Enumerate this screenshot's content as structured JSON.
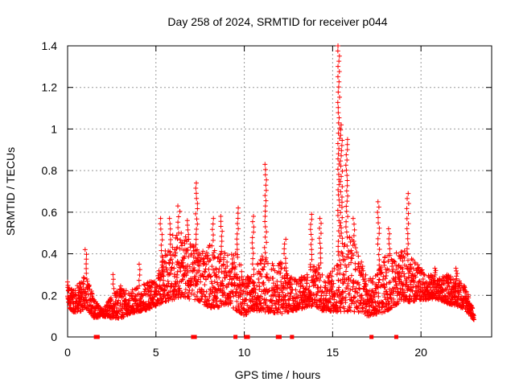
{
  "chart_data": {
    "type": "scatter",
    "title": "Day 258 of 2024, SRMTID for receiver p044",
    "xlabel": "GPS time / hours",
    "ylabel": "SRMTID / TECUs",
    "xlim": [
      0,
      24
    ],
    "ylim": [
      0,
      1.4
    ],
    "x_ticks": [
      0,
      5,
      10,
      15,
      20
    ],
    "x_tick_labels": [
      "0",
      "5",
      "10",
      "15",
      "20"
    ],
    "y_ticks": [
      0,
      0.2,
      0.4,
      0.6,
      0.8,
      1,
      1.2,
      1.4
    ],
    "y_tick_labels": [
      "0",
      "0.2",
      "0.4",
      "0.6",
      "0.8",
      "1",
      "1.2",
      "1.4"
    ],
    "grid": true,
    "marker": "+",
    "color": "#ff0000",
    "envelope": {
      "x": [
        0,
        0.3,
        0.7,
        1.0,
        1.5,
        2.0,
        2.5,
        3.0,
        3.5,
        4.0,
        4.5,
        5.0,
        5.5,
        6.0,
        6.5,
        7.0,
        7.5,
        8.0,
        8.5,
        9.0,
        9.5,
        10.0,
        10.5,
        11.0,
        11.5,
        12.0,
        12.5,
        13.0,
        13.5,
        14.0,
        14.5,
        15.0,
        15.5,
        16.0,
        16.5,
        17.0,
        17.5,
        18.0,
        18.5,
        19.0,
        19.5,
        20.0,
        20.5,
        21.0,
        21.5,
        22.0,
        22.5,
        23.0
      ],
      "lo": [
        0.15,
        0.12,
        0.12,
        0.14,
        0.09,
        0.1,
        0.09,
        0.09,
        0.11,
        0.12,
        0.13,
        0.15,
        0.17,
        0.18,
        0.19,
        0.18,
        0.17,
        0.14,
        0.14,
        0.16,
        0.13,
        0.1,
        0.13,
        0.12,
        0.12,
        0.11,
        0.12,
        0.13,
        0.14,
        0.15,
        0.12,
        0.12,
        0.12,
        0.12,
        0.12,
        0.1,
        0.11,
        0.12,
        0.15,
        0.16,
        0.17,
        0.18,
        0.18,
        0.18,
        0.16,
        0.15,
        0.13,
        0.08
      ],
      "hi": [
        0.27,
        0.23,
        0.26,
        0.32,
        0.18,
        0.13,
        0.2,
        0.25,
        0.22,
        0.24,
        0.27,
        0.28,
        0.42,
        0.5,
        0.5,
        0.45,
        0.4,
        0.45,
        0.42,
        0.4,
        0.42,
        0.3,
        0.3,
        0.4,
        0.35,
        0.38,
        0.3,
        0.28,
        0.3,
        0.38,
        0.3,
        0.32,
        0.45,
        0.5,
        0.4,
        0.28,
        0.3,
        0.4,
        0.4,
        0.42,
        0.38,
        0.33,
        0.3,
        0.28,
        0.3,
        0.28,
        0.25,
        0.12
      ]
    },
    "spikes": [
      {
        "x": 1.05,
        "y": 0.42
      },
      {
        "x": 2.6,
        "y": 0.3
      },
      {
        "x": 4.1,
        "y": 0.35
      },
      {
        "x": 5.3,
        "y": 0.57
      },
      {
        "x": 5.8,
        "y": 0.57
      },
      {
        "x": 6.3,
        "y": 0.63
      },
      {
        "x": 6.8,
        "y": 0.56
      },
      {
        "x": 7.3,
        "y": 0.74
      },
      {
        "x": 8.2,
        "y": 0.57
      },
      {
        "x": 8.7,
        "y": 0.58
      },
      {
        "x": 9.6,
        "y": 0.62
      },
      {
        "x": 10.5,
        "y": 0.58
      },
      {
        "x": 11.2,
        "y": 0.83
      },
      {
        "x": 12.3,
        "y": 0.47
      },
      {
        "x": 13.8,
        "y": 0.59
      },
      {
        "x": 14.3,
        "y": 0.57
      },
      {
        "x": 15.35,
        "y": 1.4
      },
      {
        "x": 15.5,
        "y": 1.02
      },
      {
        "x": 15.8,
        "y": 0.95
      },
      {
        "x": 16.2,
        "y": 0.57
      },
      {
        "x": 17.6,
        "y": 0.65
      },
      {
        "x": 18.2,
        "y": 0.52
      },
      {
        "x": 19.25,
        "y": 0.69
      },
      {
        "x": 20.8,
        "y": 0.33
      },
      {
        "x": 22.0,
        "y": 0.33
      }
    ],
    "zero_points_x": [
      1.6,
      1.7,
      7.1,
      7.2,
      9.5,
      10.1,
      10.2,
      11.9,
      12.0,
      12.7,
      17.2,
      18.6
    ]
  }
}
